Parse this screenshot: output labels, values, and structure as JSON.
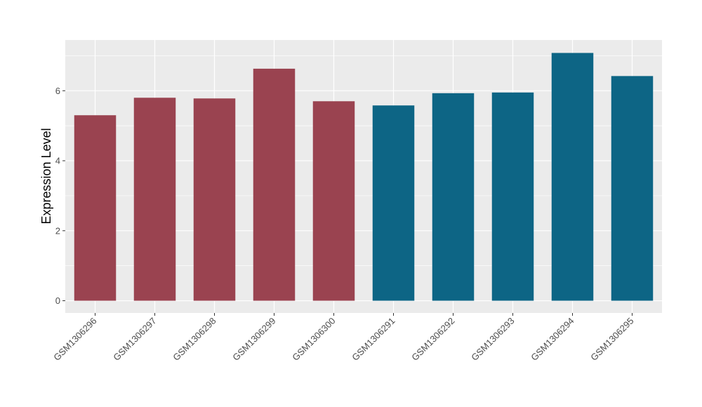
{
  "chart_data": {
    "type": "bar",
    "categories": [
      "GSM1306296",
      "GSM1306297",
      "GSM1306298",
      "GSM1306299",
      "GSM1306300",
      "GSM1306291",
      "GSM1306292",
      "GSM1306293",
      "GSM1306294",
      "GSM1306295"
    ],
    "values": [
      5.3,
      5.8,
      5.78,
      6.63,
      5.7,
      5.58,
      5.93,
      5.95,
      7.08,
      6.42
    ],
    "bar_colors": [
      "#9a4350",
      "#9a4350",
      "#9a4350",
      "#9a4350",
      "#9a4350",
      "#0d6585",
      "#0d6585",
      "#0d6585",
      "#0d6585",
      "#0d6585"
    ],
    "xlabel": "",
    "ylabel": "Expression Level",
    "ylim": [
      -0.35,
      7.45
    ],
    "yticks": [
      0,
      2,
      4,
      6
    ],
    "ytick_labels": [
      "0",
      "2",
      "4",
      "6"
    ],
    "grid": true,
    "panel_background": "#ebebeb",
    "grid_color": "#ffffff"
  }
}
